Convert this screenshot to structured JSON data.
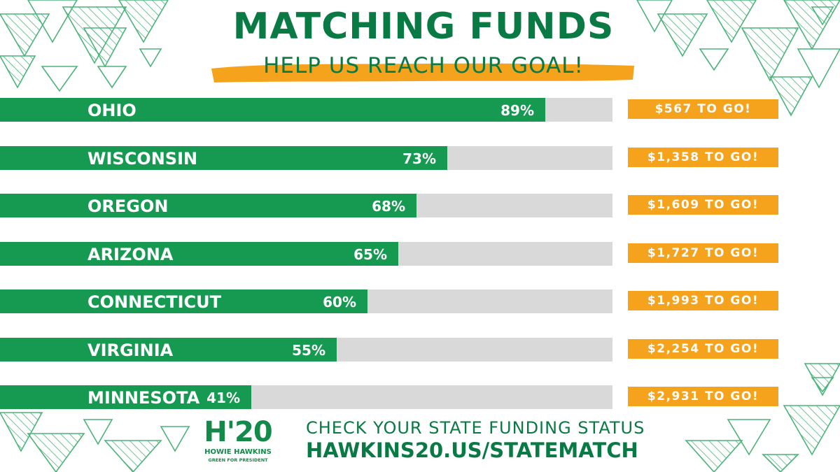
{
  "header": {
    "title": "MATCHING FUNDS",
    "subtitle": "HELP US REACH OUR GOAL!"
  },
  "chart_data": {
    "type": "bar",
    "orientation": "horizontal",
    "categories": [
      "OHIO",
      "WISCONSIN",
      "OREGON",
      "ARIZONA",
      "CONNECTICUT",
      "VIRGINIA",
      "MINNESOTA"
    ],
    "values": [
      89,
      73,
      68,
      65,
      60,
      55,
      41
    ],
    "value_labels": [
      "89%",
      "73%",
      "68%",
      "65%",
      "60%",
      "55%",
      "41%"
    ],
    "annotations": [
      "$567 TO GO!",
      "$1,358 TO GO!",
      "$1,609 TO GO!",
      "$1,727 TO GO!",
      "$1,993 TO GO!",
      "$2,254 TO GO!",
      "$2,931 TO GO!"
    ],
    "xlim": [
      0,
      100
    ],
    "grid": false,
    "title": "",
    "xlabel": "",
    "ylabel": ""
  },
  "footer": {
    "logo": {
      "mark": "H'20",
      "name": "HOWIE HAWKINS",
      "tagline": "GREEN FOR PRESIDENT"
    },
    "cta_line1": "CHECK YOUR STATE FUNDING STATUS",
    "cta_line2": "HAWKINS20.US/STATEMATCH"
  },
  "colors": {
    "brand_green": "#0a7a45",
    "bar_green": "#169a52",
    "track_gray": "#d9d9d9",
    "accent_orange": "#f5a21d",
    "decor_green": "#4cb37a"
  }
}
